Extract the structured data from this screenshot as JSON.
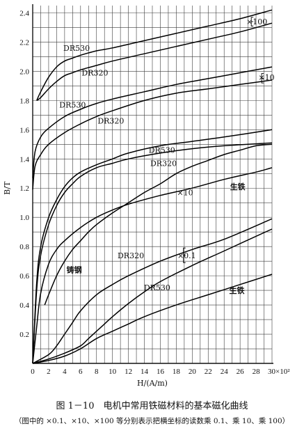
{
  "chart_data": {
    "type": "line",
    "title": "",
    "xlabel": "H/(A/m)",
    "ylabel": "B/T",
    "xlim": [
      0,
      30
    ],
    "ylim": [
      0,
      2.45
    ],
    "x_ticks": [
      "0",
      "2",
      "4",
      "6",
      "8",
      "10",
      "12",
      "14",
      "16",
      "18",
      "20",
      "22",
      "24",
      "26",
      "28",
      "30×10²"
    ],
    "y_ticks": [
      "0.2",
      "0.4",
      "0.6",
      "0.8",
      "1.0",
      "1.2",
      "1.4",
      "1.6",
      "1.8",
      "2.0",
      "2.2",
      "2.4"
    ],
    "grid": true,
    "series": [
      {
        "name": "DR530",
        "scale": "×100",
        "points": [
          [
            0.5,
            1.8
          ],
          [
            1,
            1.86
          ],
          [
            2,
            1.96
          ],
          [
            3,
            2.03
          ],
          [
            4,
            2.07
          ],
          [
            5,
            2.09
          ],
          [
            6,
            2.11
          ],
          [
            8,
            2.14
          ],
          [
            10,
            2.16
          ],
          [
            14,
            2.21
          ],
          [
            18,
            2.26
          ],
          [
            22,
            2.31
          ],
          [
            26,
            2.36
          ],
          [
            30,
            2.42
          ]
        ]
      },
      {
        "name": "DR320",
        "scale": "×100",
        "points": [
          [
            0.5,
            1.8
          ],
          [
            1,
            1.82
          ],
          [
            2,
            1.88
          ],
          [
            3,
            1.93
          ],
          [
            4,
            1.97
          ],
          [
            5,
            1.99
          ],
          [
            6,
            2.01
          ],
          [
            8,
            2.04
          ],
          [
            10,
            2.07
          ],
          [
            14,
            2.12
          ],
          [
            18,
            2.17
          ],
          [
            22,
            2.22
          ],
          [
            26,
            2.27
          ],
          [
            30,
            2.33
          ]
        ]
      },
      {
        "name": "DR530",
        "scale": "×10",
        "points": [
          [
            0,
            1.27
          ],
          [
            0.3,
            1.45
          ],
          [
            1,
            1.55
          ],
          [
            2,
            1.61
          ],
          [
            4,
            1.69
          ],
          [
            6,
            1.74
          ],
          [
            8,
            1.78
          ],
          [
            10,
            1.81
          ],
          [
            14,
            1.86
          ],
          [
            18,
            1.91
          ],
          [
            22,
            1.95
          ],
          [
            26,
            1.99
          ],
          [
            30,
            2.03
          ]
        ]
      },
      {
        "name": "DR320",
        "scale": "×10",
        "points": [
          [
            0,
            1.19
          ],
          [
            0.3,
            1.35
          ],
          [
            1,
            1.43
          ],
          [
            2,
            1.5
          ],
          [
            4,
            1.58
          ],
          [
            6,
            1.64
          ],
          [
            8,
            1.69
          ],
          [
            10,
            1.73
          ],
          [
            14,
            1.8
          ],
          [
            18,
            1.85
          ],
          [
            22,
            1.88
          ],
          [
            26,
            1.91
          ],
          [
            30,
            1.94
          ]
        ]
      },
      {
        "name": "DR530",
        "scale": "×10",
        "points": [
          [
            0,
            0
          ],
          [
            0.5,
            0.55
          ],
          [
            1,
            0.8
          ],
          [
            2,
            1.0
          ],
          [
            3,
            1.12
          ],
          [
            4,
            1.21
          ],
          [
            5,
            1.27
          ],
          [
            6,
            1.31
          ],
          [
            8,
            1.36
          ],
          [
            10,
            1.4
          ],
          [
            12,
            1.44
          ],
          [
            16,
            1.49
          ],
          [
            20,
            1.52
          ],
          [
            24,
            1.55
          ],
          [
            30,
            1.6
          ]
        ]
      },
      {
        "name": "DR320",
        "scale": "×10",
        "points": [
          [
            0,
            0
          ],
          [
            0.5,
            0.5
          ],
          [
            1,
            0.74
          ],
          [
            2,
            0.95
          ],
          [
            3,
            1.08
          ],
          [
            4,
            1.17
          ],
          [
            5,
            1.23
          ],
          [
            6,
            1.28
          ],
          [
            8,
            1.34
          ],
          [
            10,
            1.37
          ],
          [
            12,
            1.4
          ],
          [
            16,
            1.44
          ],
          [
            20,
            1.47
          ],
          [
            24,
            1.49
          ],
          [
            30,
            1.51
          ]
        ]
      },
      {
        "name": "生铁",
        "scale": "×10",
        "points": [
          [
            0,
            0
          ],
          [
            0.5,
            0.25
          ],
          [
            1,
            0.48
          ],
          [
            2,
            0.68
          ],
          [
            3,
            0.78
          ],
          [
            4,
            0.84
          ],
          [
            6,
            0.93
          ],
          [
            8,
            1.0
          ],
          [
            10,
            1.05
          ],
          [
            12,
            1.09
          ],
          [
            16,
            1.15
          ],
          [
            20,
            1.2
          ],
          [
            24,
            1.26
          ],
          [
            28,
            1.31
          ],
          [
            30,
            1.34
          ]
        ]
      },
      {
        "name": "铸钢",
        "scale": "",
        "points": [
          [
            1.5,
            0.4
          ],
          [
            2,
            0.47
          ],
          [
            3,
            0.6
          ],
          [
            4,
            0.7
          ],
          [
            5,
            0.78
          ],
          [
            6,
            0.84
          ],
          [
            7,
            0.9
          ],
          [
            8,
            0.95
          ],
          [
            10,
            1.03
          ],
          [
            12,
            1.1
          ],
          [
            14,
            1.17
          ],
          [
            16,
            1.23
          ],
          [
            18,
            1.3
          ],
          [
            20,
            1.35
          ],
          [
            22,
            1.39
          ],
          [
            24,
            1.43
          ],
          [
            26,
            1.46
          ],
          [
            28,
            1.49
          ],
          [
            30,
            1.5
          ]
        ]
      },
      {
        "name": "DR320",
        "scale": "×0.1",
        "points": [
          [
            0,
            0
          ],
          [
            2,
            0.06
          ],
          [
            3,
            0.12
          ],
          [
            4,
            0.2
          ],
          [
            5,
            0.28
          ],
          [
            6,
            0.36
          ],
          [
            8,
            0.47
          ],
          [
            10,
            0.54
          ],
          [
            12,
            0.6
          ],
          [
            16,
            0.7
          ],
          [
            20,
            0.78
          ],
          [
            24,
            0.85
          ],
          [
            30,
            0.99
          ]
        ]
      },
      {
        "name": "DR530",
        "scale": "×0.1",
        "points": [
          [
            0,
            0
          ],
          [
            2,
            0.03
          ],
          [
            4,
            0.07
          ],
          [
            6,
            0.12
          ],
          [
            7,
            0.17
          ],
          [
            8,
            0.22
          ],
          [
            9,
            0.27
          ],
          [
            10,
            0.32
          ],
          [
            12,
            0.41
          ],
          [
            14,
            0.49
          ],
          [
            16,
            0.56
          ],
          [
            20,
            0.67
          ],
          [
            24,
            0.77
          ],
          [
            30,
            0.92
          ]
        ]
      },
      {
        "name": "生铁",
        "scale": "×0.1",
        "points": [
          [
            0,
            0
          ],
          [
            2,
            0.02
          ],
          [
            4,
            0.05
          ],
          [
            6,
            0.1
          ],
          [
            8,
            0.17
          ],
          [
            10,
            0.22
          ],
          [
            12,
            0.27
          ],
          [
            14,
            0.32
          ],
          [
            18,
            0.4
          ],
          [
            22,
            0.47
          ],
          [
            26,
            0.54
          ],
          [
            30,
            0.61
          ]
        ]
      }
    ],
    "annotations": [
      {
        "text": "DR530",
        "x": 5.5,
        "y": 2.16
      },
      {
        "text": "DR320",
        "x": 7.8,
        "y": 1.99
      },
      {
        "text": "×100",
        "x": 28.1,
        "y": 2.34
      },
      {
        "text": "DR530",
        "x": 5.0,
        "y": 1.77
      },
      {
        "text": "DR320",
        "x": 9.8,
        "y": 1.66
      },
      {
        "text": "×10",
        "x": 29.3,
        "y": 1.96
      },
      {
        "text": "DR530",
        "x": 16.2,
        "y": 1.46
      },
      {
        "text": "DR320",
        "x": 16.4,
        "y": 1.37
      },
      {
        "text": "生铁",
        "x": 25.7,
        "y": 1.21
      },
      {
        "text": "×10",
        "x": 19.1,
        "y": 1.17
      },
      {
        "text": "铸钢",
        "x": 5.2,
        "y": 0.64
      },
      {
        "text": "DR320",
        "x": 12.3,
        "y": 0.74
      },
      {
        "text": "×0.1",
        "x": 19.3,
        "y": 0.74
      },
      {
        "text": "DR530",
        "x": 15.6,
        "y": 0.52
      },
      {
        "text": "生铁",
        "x": 25.6,
        "y": 0.5
      }
    ]
  },
  "caption": {
    "title": "图 1－10　电机中常用铁磁材料的基本磁化曲线",
    "note": "（图中的 ×0.1、×10、×100 等分别表示把横坐标的读数乘 0.1、乘 10、乘 100）"
  }
}
